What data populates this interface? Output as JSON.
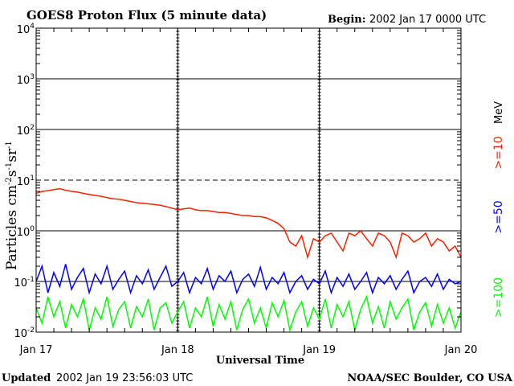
{
  "chart_data": {
    "type": "line",
    "title": "GOES8 Proton Flux (5 minute data)",
    "begin_label": "Begin:",
    "begin_value": "2002 Jan 17 0000 UTC",
    "xlabel": "Universal Time",
    "ylabel": "Particles cm",
    "ylabel_parts": [
      "Particles cm",
      "-2",
      "s",
      "-1",
      "sr",
      "-1"
    ],
    "x_unit": "hours since 2002 Jan 17 0000 UTC",
    "xlim": [
      0,
      72
    ],
    "x_ticks": [
      {
        "x": 0,
        "label": "Jan 17"
      },
      {
        "x": 24,
        "label": "Jan 18"
      },
      {
        "x": 48,
        "label": "Jan 19"
      },
      {
        "x": 72,
        "label": "Jan 20"
      }
    ],
    "yscale": "log",
    "ylim": [
      0.01,
      10000
    ],
    "y_ticks": [
      {
        "exp": 4,
        "label": "10",
        "sup": "4"
      },
      {
        "exp": 3,
        "label": "10",
        "sup": "3"
      },
      {
        "exp": 2,
        "label": "10",
        "sup": "2"
      },
      {
        "exp": 1,
        "label": "10",
        "sup": "1"
      },
      {
        "exp": 0,
        "label": "10",
        "sup": "0"
      },
      {
        "exp": -1,
        "label": "10",
        "sup": "-1"
      },
      {
        "exp": -2,
        "label": "10",
        "sup": "-2"
      }
    ],
    "threshold_line": 10,
    "legend_unit": "MeV",
    "series": [
      {
        "name": ">=10",
        "color": "#ff2000",
        "values": [
          5.5,
          6,
          6.2,
          6.5,
          6.8,
          6.3,
          6,
          5.8,
          5.5,
          5.2,
          5,
          4.8,
          4.5,
          4.3,
          4.2,
          4,
          3.8,
          3.6,
          3.5,
          3.4,
          3.3,
          3.2,
          3,
          2.8,
          2.6,
          2.7,
          2.8,
          2.6,
          2.5,
          2.5,
          2.4,
          2.3,
          2.3,
          2.2,
          2.1,
          2,
          2,
          1.9,
          1.9,
          1.8,
          1.6,
          1.4,
          1.1,
          0.6,
          0.5,
          0.8,
          0.3,
          0.7,
          0.6,
          0.8,
          0.9,
          0.6,
          0.4,
          0.9,
          0.8,
          1,
          0.7,
          0.5,
          0.9,
          0.8,
          0.6,
          0.3,
          0.9,
          0.8,
          0.6,
          0.7,
          0.9,
          0.5,
          0.7,
          0.6,
          0.4,
          0.5,
          0.3
        ]
      },
      {
        "name": ">=50",
        "color": "#0000ff",
        "values": [
          0.1,
          0.2,
          0.06,
          0.15,
          0.08,
          0.22,
          0.07,
          0.12,
          0.18,
          0.06,
          0.14,
          0.09,
          0.2,
          0.07,
          0.11,
          0.16,
          0.06,
          0.13,
          0.09,
          0.17,
          0.07,
          0.12,
          0.2,
          0.08,
          0.1,
          0.15,
          0.06,
          0.12,
          0.09,
          0.18,
          0.07,
          0.13,
          0.1,
          0.16,
          0.06,
          0.11,
          0.14,
          0.08,
          0.19,
          0.07,
          0.12,
          0.09,
          0.15,
          0.06,
          0.1,
          0.13,
          0.07,
          0.11,
          0.09,
          0.16,
          0.06,
          0.12,
          0.08,
          0.14,
          0.07,
          0.1,
          0.15,
          0.06,
          0.12,
          0.09,
          0.13,
          0.07,
          0.11,
          0.16,
          0.06,
          0.1,
          0.12,
          0.08,
          0.14,
          0.07,
          0.11,
          0.09,
          0.1
        ]
      },
      {
        "name": ">=100",
        "color": "#00ff00",
        "values": [
          0.03,
          0.015,
          0.05,
          0.02,
          0.04,
          0.012,
          0.035,
          0.02,
          0.045,
          0.011,
          0.03,
          0.018,
          0.05,
          0.013,
          0.028,
          0.04,
          0.012,
          0.032,
          0.02,
          0.045,
          0.011,
          0.03,
          0.038,
          0.015,
          0.025,
          0.04,
          0.012,
          0.03,
          0.02,
          0.05,
          0.013,
          0.035,
          0.018,
          0.04,
          0.011,
          0.028,
          0.045,
          0.015,
          0.03,
          0.012,
          0.038,
          0.02,
          0.042,
          0.011,
          0.025,
          0.04,
          0.013,
          0.03,
          0.018,
          0.045,
          0.012,
          0.035,
          0.02,
          0.04,
          0.011,
          0.028,
          0.05,
          0.015,
          0.032,
          0.012,
          0.04,
          0.018,
          0.03,
          0.045,
          0.011,
          0.025,
          0.038,
          0.013,
          0.035,
          0.015,
          0.03,
          0.012,
          0.025
        ]
      }
    ]
  },
  "footer": {
    "updated_label": "Updated",
    "updated_value": "2002 Jan 19 23:56:03 UTC",
    "credit": "NOAA/SEC Boulder, CO USA"
  }
}
